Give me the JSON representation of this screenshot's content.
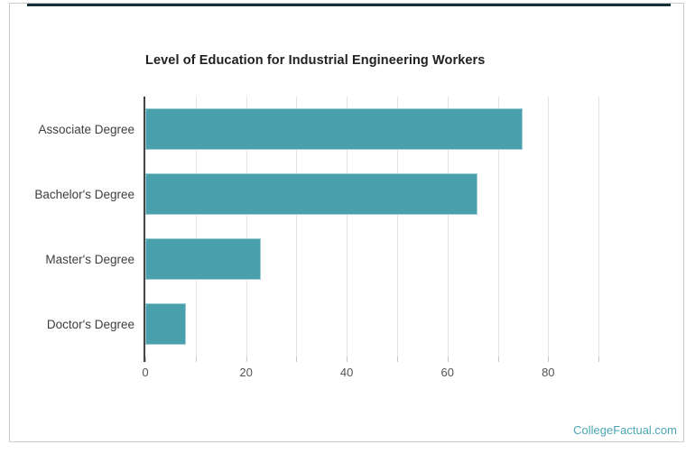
{
  "watermark": {
    "label": "CollegeFactual.com",
    "color": "#4ba5b3"
  },
  "card": {
    "border_color": "#cbcbcb",
    "accent_bar_color": "#142f35"
  },
  "chart_data": {
    "type": "bar",
    "orientation": "horizontal",
    "title": "Level of Education for Industrial Engineering Workers",
    "categories": [
      "Associate Degree",
      "Bachelor's Degree",
      "Master's Degree",
      "Doctor's Degree"
    ],
    "values": [
      75,
      66,
      23,
      8
    ],
    "xlabel": "",
    "ylabel": "",
    "xlim": [
      0,
      95
    ],
    "x_major_ticks": [
      0,
      20,
      40,
      60,
      80
    ],
    "x_minor_tick_step": 10,
    "grid": true,
    "legend": false,
    "bar_color": "#4a9fad",
    "bar_border_color": "#9dccd4",
    "grid_color": "#e3e3e3",
    "axis_color": "#424242",
    "tick_label_color": "#545454",
    "category_label_color": "#3d3d3d",
    "title_color": "#212121"
  }
}
